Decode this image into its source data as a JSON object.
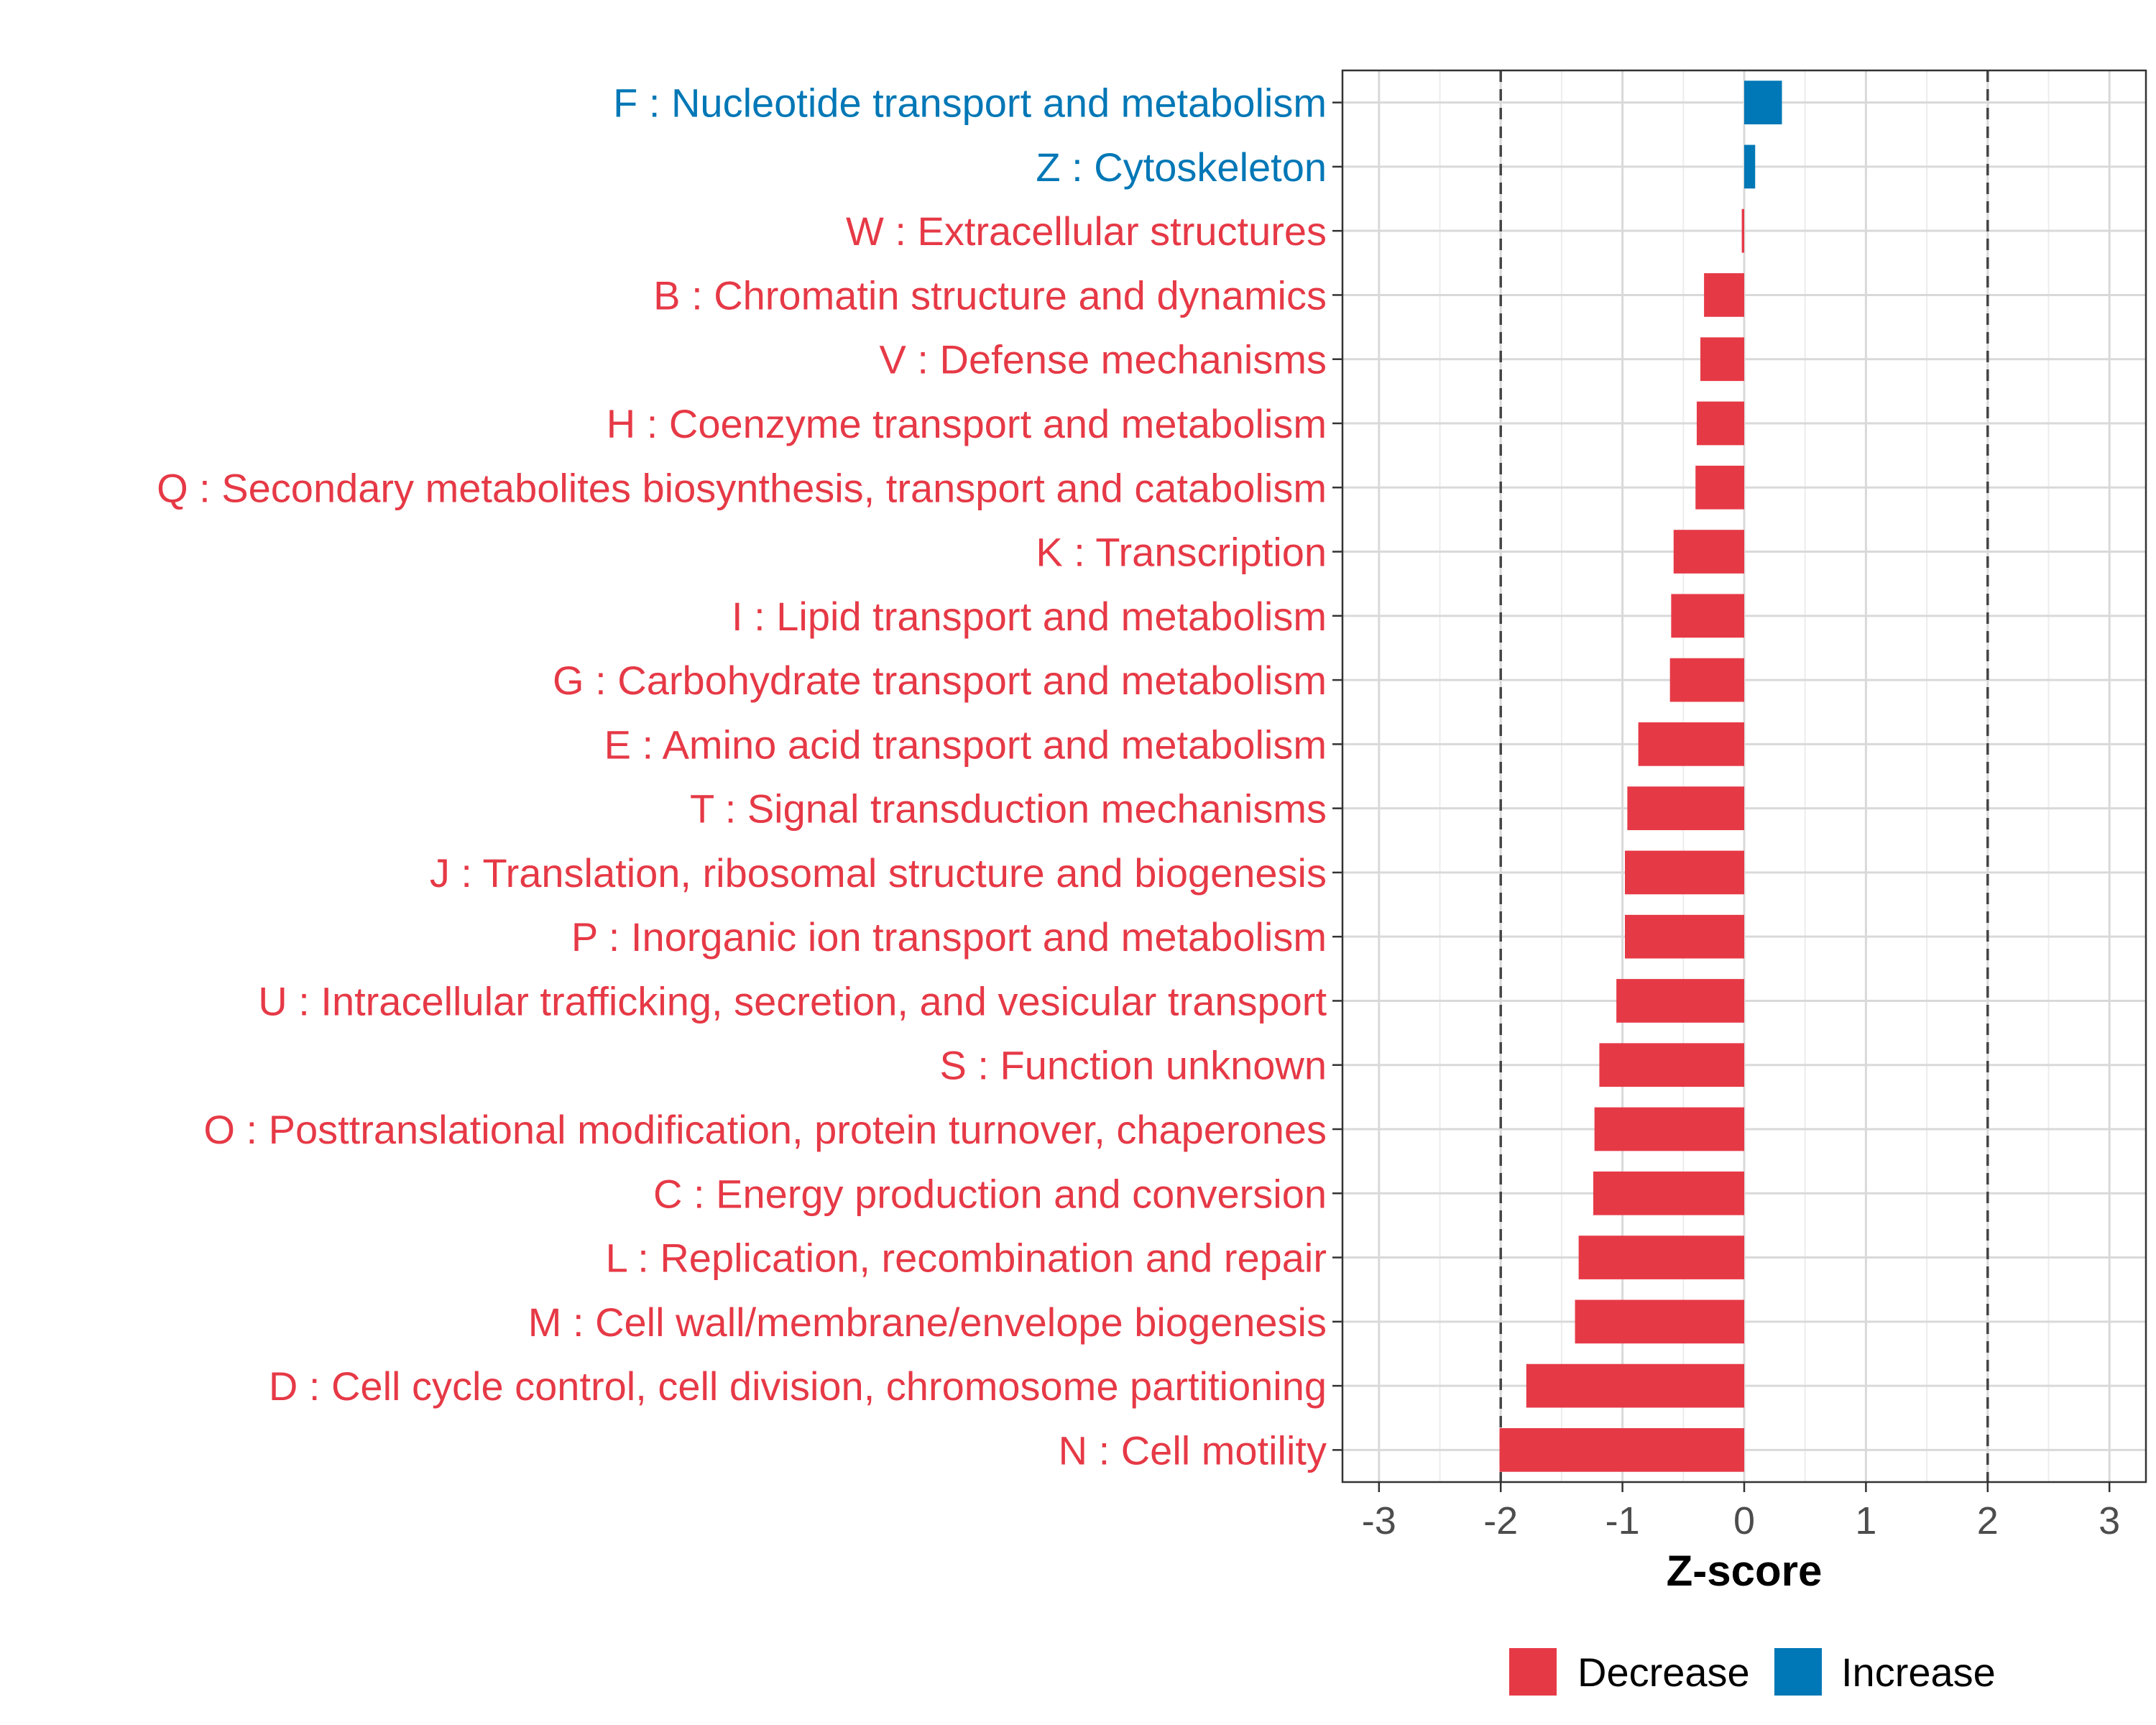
{
  "chart_data": {
    "type": "bar",
    "orientation": "horizontal",
    "title": "",
    "xlabel": "Z-score",
    "ylabel": "",
    "xlim": [
      -3.3,
      3.3
    ],
    "x_ticks": [
      -3,
      -2,
      -1,
      0,
      1,
      2,
      3
    ],
    "x_tick_labels": [
      "-3",
      "-2",
      "-1",
      "0",
      "1",
      "2",
      "3"
    ],
    "reference_lines": [
      -2,
      2
    ],
    "grid": true,
    "legend_position": "bottom",
    "colors": {
      "Decrease": "#E63946",
      "Increase": "#0077B6"
    },
    "legend": [
      {
        "label": "Decrease",
        "color": "#E63946"
      },
      {
        "label": "Increase",
        "color": "#0077B6"
      }
    ],
    "categories": [
      "F : Nucleotide transport and metabolism",
      "Z : Cytoskeleton",
      "W : Extracellular structures",
      "B : Chromatin structure and dynamics",
      "V : Defense mechanisms",
      "H : Coenzyme transport and metabolism",
      "Q : Secondary metabolites biosynthesis, transport and catabolism",
      "K : Transcription",
      "I : Lipid transport and metabolism",
      "G : Carbohydrate transport and metabolism",
      "E : Amino acid transport and metabolism",
      "T : Signal transduction mechanisms",
      "J : Translation, ribosomal structure and biogenesis",
      "P : Inorganic ion transport and metabolism",
      "U : Intracellular trafficking, secretion, and vesicular transport",
      "S : Function unknown",
      "O : Posttranslational modification, protein turnover, chaperones",
      "C : Energy production and conversion",
      "L : Replication, recombination and repair",
      "M : Cell wall/membrane/envelope biogenesis",
      "D : Cell cycle control, cell division, chromosome partitioning",
      "N : Cell motility"
    ],
    "values": [
      0.31,
      0.09,
      -0.02,
      -0.33,
      -0.36,
      -0.39,
      -0.4,
      -0.58,
      -0.6,
      -0.61,
      -0.87,
      -0.96,
      -0.98,
      -0.98,
      -1.05,
      -1.19,
      -1.23,
      -1.24,
      -1.36,
      -1.39,
      -1.79,
      -2.01
    ],
    "groups": [
      "Increase",
      "Increase",
      "Decrease",
      "Decrease",
      "Decrease",
      "Decrease",
      "Decrease",
      "Decrease",
      "Decrease",
      "Decrease",
      "Decrease",
      "Decrease",
      "Decrease",
      "Decrease",
      "Decrease",
      "Decrease",
      "Decrease",
      "Decrease",
      "Decrease",
      "Decrease",
      "Decrease",
      "Decrease"
    ]
  }
}
